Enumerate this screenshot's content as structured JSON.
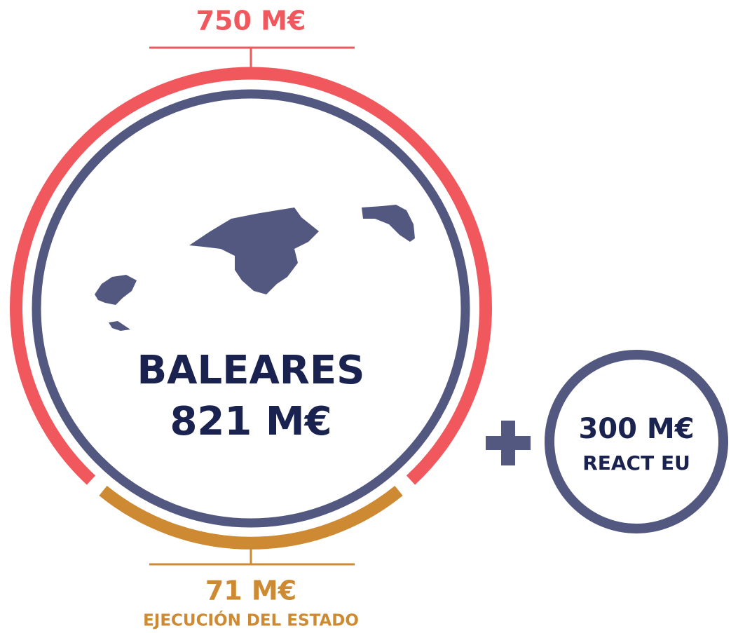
{
  "top_label": "750 M€",
  "center": {
    "title": "BALEARES",
    "amount": "821 M€"
  },
  "bottom": {
    "amount": "71 M€",
    "label": "EJECUCIÓN DEL ESTADO"
  },
  "extra": {
    "amount": "300 M€",
    "label": "REACT EU"
  }
}
